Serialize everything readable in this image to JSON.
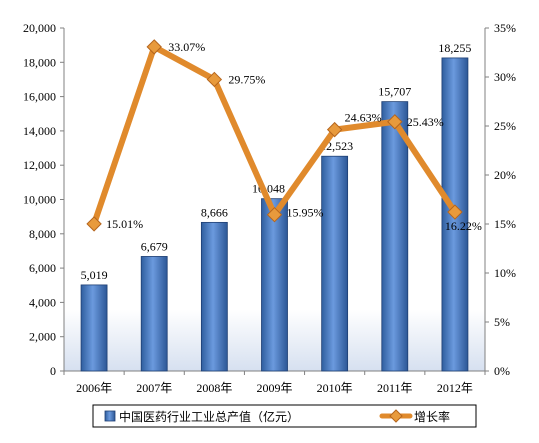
{
  "chart_data": {
    "type": "bar",
    "categories": [
      "2006年",
      "2007年",
      "2008年",
      "2009年",
      "2010年",
      "2011年",
      "2012年"
    ],
    "series": [
      {
        "name": "中国医药行业工业总产值（亿元）",
        "type": "bar",
        "axis": "left",
        "values": [
          5019,
          6679,
          8666,
          10048,
          12523,
          15707,
          18255
        ],
        "labels": [
          "5,019",
          "6,679",
          "8,666",
          "10,048",
          "12,523",
          "15,707",
          "18,255"
        ],
        "color": "#4a7ec8"
      },
      {
        "name": "增长率",
        "type": "line",
        "axis": "right",
        "values": [
          15.01,
          33.07,
          29.75,
          15.95,
          24.63,
          25.43,
          16.22
        ],
        "labels": [
          "15.01%",
          "33.07%",
          "29.75%",
          "15.95%",
          "24.63%",
          "25.43%",
          "16.22%"
        ],
        "color": "#e08a2c"
      }
    ],
    "y_left": {
      "lim": [
        0,
        20000
      ],
      "ticks": [
        "0",
        "2,000",
        "4,000",
        "6,000",
        "8,000",
        "10,000",
        "12,000",
        "14,000",
        "16,000",
        "18,000",
        "20,000"
      ]
    },
    "y_right": {
      "lim": [
        0,
        35
      ],
      "ticks": [
        "0%",
        "5%",
        "10%",
        "15%",
        "20%",
        "25%",
        "30%",
        "35%"
      ]
    },
    "grid": false,
    "legend": "bottom"
  }
}
